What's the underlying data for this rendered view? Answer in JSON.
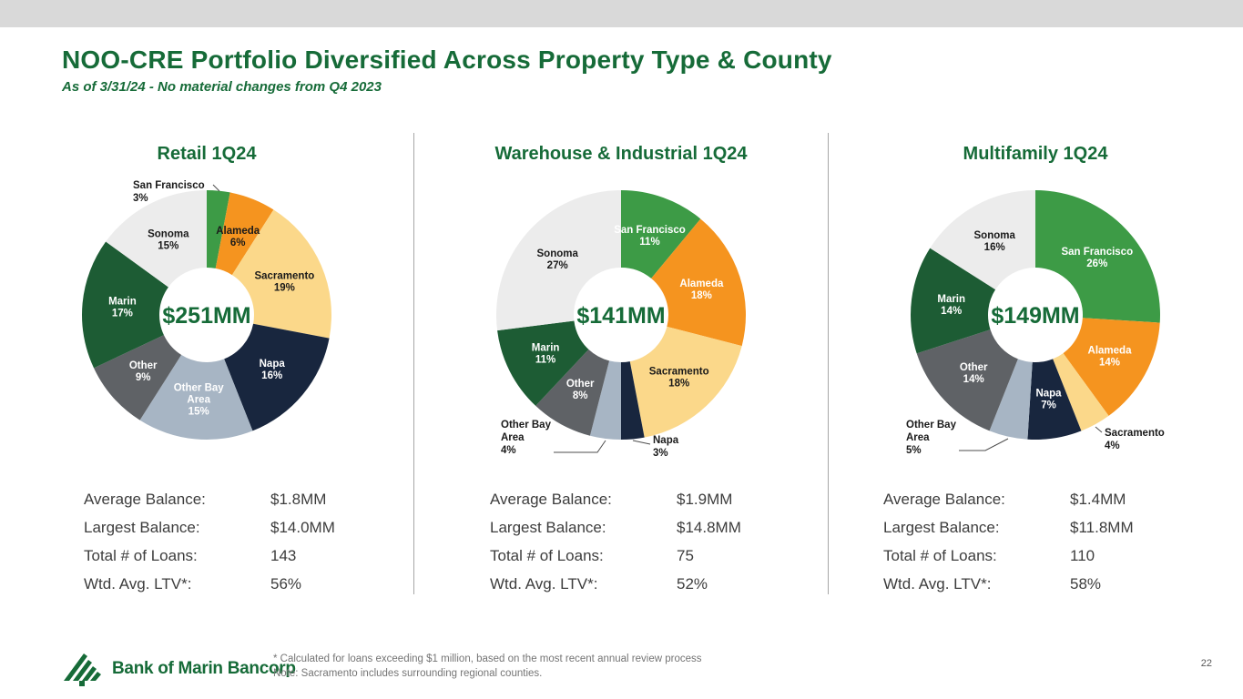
{
  "slide": {
    "title": "NOO-CRE Portfolio Diversified Across Property Type & County",
    "subtitle": "As of 3/31/24 - No material changes from Q4 2023",
    "page_number": "22",
    "footnotes": {
      "line1": "* Calculated for loans exceeding $1 million, based on the most recent annual review process",
      "line2": "Note: Sacramento includes surrounding regional counties."
    },
    "logo_text": "Bank of Marin Bancorp"
  },
  "colors": {
    "accent_green": "#166b38",
    "top_bar_gray": "#d9d9d9",
    "san_francisco": "#3d9b46",
    "alameda": "#f5941f",
    "sacramento": "#fbd88a",
    "napa": "#18263e",
    "other_bay_area": "#a7b5c4",
    "other": "#5f6266",
    "marin": "#1d5c34",
    "sonoma": "#ececec"
  },
  "chart_data": [
    {
      "type": "pie",
      "subtype": "donut",
      "title": "Retail 1Q24",
      "center_label": "$251MM",
      "segments": [
        {
          "name": "San Francisco",
          "value": 3,
          "color": "#3d9b46",
          "label_lines": [
            "San Francisco",
            "3%"
          ],
          "label_color": "#1a1a1a",
          "placement": "outside"
        },
        {
          "name": "Alameda",
          "value": 6,
          "color": "#f5941f",
          "label_lines": [
            "Alameda",
            "6%"
          ],
          "label_color": "#1a1a1a",
          "placement": "inside"
        },
        {
          "name": "Sacramento",
          "value": 19,
          "color": "#fbd88a",
          "label_lines": [
            "Sacramento",
            "19%"
          ],
          "label_color": "#1a1a1a",
          "placement": "inside"
        },
        {
          "name": "Napa",
          "value": 16,
          "color": "#18263e",
          "label_lines": [
            "Napa",
            "16%"
          ],
          "label_color": "#ffffff",
          "placement": "inside"
        },
        {
          "name": "Other Bay Area",
          "value": 15,
          "color": "#a7b5c4",
          "label_lines": [
            "Other Bay",
            "Area",
            "15%"
          ],
          "label_color": "#ffffff",
          "placement": "inside"
        },
        {
          "name": "Other",
          "value": 9,
          "color": "#5f6266",
          "label_lines": [
            "Other",
            "9%"
          ],
          "label_color": "#ffffff",
          "placement": "inside"
        },
        {
          "name": "Marin",
          "value": 17,
          "color": "#1d5c34",
          "label_lines": [
            "Marin",
            "17%"
          ],
          "label_color": "#ffffff",
          "placement": "inside"
        },
        {
          "name": "Sonoma",
          "value": 15,
          "color": "#ececec",
          "label_lines": [
            "Sonoma",
            "15%"
          ],
          "label_color": "#1a1a1a",
          "placement": "inside"
        }
      ],
      "stats": [
        {
          "label": "Average Balance:",
          "value": "$1.8MM"
        },
        {
          "label": "Largest Balance:",
          "value": "$14.0MM"
        },
        {
          "label": "Total # of Loans:",
          "value": "143"
        },
        {
          "label": "Wtd. Avg. LTV*:",
          "value": "56%"
        }
      ]
    },
    {
      "type": "pie",
      "subtype": "donut",
      "title": "Warehouse & Industrial 1Q24",
      "center_label": "$141MM",
      "segments": [
        {
          "name": "San Francisco",
          "value": 11,
          "color": "#3d9b46",
          "label_lines": [
            "San Francisco",
            "11%"
          ],
          "label_color": "#ffffff",
          "placement": "inside"
        },
        {
          "name": "Alameda",
          "value": 18,
          "color": "#f5941f",
          "label_lines": [
            "Alameda",
            "18%"
          ],
          "label_color": "#ffffff",
          "placement": "inside"
        },
        {
          "name": "Sacramento",
          "value": 18,
          "color": "#fbd88a",
          "label_lines": [
            "Sacramento",
            "18%"
          ],
          "label_color": "#1a1a1a",
          "placement": "inside"
        },
        {
          "name": "Napa",
          "value": 3,
          "color": "#18263e",
          "label_lines": [
            "Napa",
            "3%"
          ],
          "label_color": "#1a1a1a",
          "placement": "outside"
        },
        {
          "name": "Other Bay Area",
          "value": 4,
          "color": "#a7b5c4",
          "label_lines": [
            "Other Bay",
            "Area",
            "4%"
          ],
          "label_color": "#1a1a1a",
          "placement": "outside"
        },
        {
          "name": "Other",
          "value": 8,
          "color": "#5f6266",
          "label_lines": [
            "Other",
            "8%"
          ],
          "label_color": "#ffffff",
          "placement": "inside"
        },
        {
          "name": "Marin",
          "value": 11,
          "color": "#1d5c34",
          "label_lines": [
            "Marin",
            "11%"
          ],
          "label_color": "#ffffff",
          "placement": "inside"
        },
        {
          "name": "Sonoma",
          "value": 27,
          "color": "#ececec",
          "label_lines": [
            "Sonoma",
            "27%"
          ],
          "label_color": "#1a1a1a",
          "placement": "inside"
        }
      ],
      "stats": [
        {
          "label": "Average Balance:",
          "value": "$1.9MM"
        },
        {
          "label": "Largest Balance:",
          "value": "$14.8MM"
        },
        {
          "label": "Total # of Loans:",
          "value": "75"
        },
        {
          "label": "Wtd. Avg. LTV*:",
          "value": "52%"
        }
      ]
    },
    {
      "type": "pie",
      "subtype": "donut",
      "title": "Multifamily 1Q24",
      "center_label": "$149MM",
      "segments": [
        {
          "name": "San Francisco",
          "value": 26,
          "color": "#3d9b46",
          "label_lines": [
            "San Francisco",
            "26%"
          ],
          "label_color": "#ffffff",
          "placement": "inside"
        },
        {
          "name": "Alameda",
          "value": 14,
          "color": "#f5941f",
          "label_lines": [
            "Alameda",
            "14%"
          ],
          "label_color": "#ffffff",
          "placement": "inside"
        },
        {
          "name": "Sacramento",
          "value": 4,
          "color": "#fbd88a",
          "label_lines": [
            "Sacramento",
            "4%"
          ],
          "label_color": "#1a1a1a",
          "placement": "outside"
        },
        {
          "name": "Napa",
          "value": 7,
          "color": "#18263e",
          "label_lines": [
            "Napa",
            "7%"
          ],
          "label_color": "#ffffff",
          "placement": "inside"
        },
        {
          "name": "Other Bay Area",
          "value": 5,
          "color": "#a7b5c4",
          "label_lines": [
            "Other Bay",
            "Area",
            "5%"
          ],
          "label_color": "#1a1a1a",
          "placement": "outside"
        },
        {
          "name": "Other",
          "value": 14,
          "color": "#5f6266",
          "label_lines": [
            "Other",
            "14%"
          ],
          "label_color": "#ffffff",
          "placement": "inside"
        },
        {
          "name": "Marin",
          "value": 14,
          "color": "#1d5c34",
          "label_lines": [
            "Marin",
            "14%"
          ],
          "label_color": "#ffffff",
          "placement": "inside"
        },
        {
          "name": "Sonoma",
          "value": 16,
          "color": "#ececec",
          "label_lines": [
            "Sonoma",
            "16%"
          ],
          "label_color": "#1a1a1a",
          "placement": "inside"
        }
      ],
      "stats": [
        {
          "label": "Average Balance:",
          "value": "$1.4MM"
        },
        {
          "label": "Largest Balance:",
          "value": "$11.8MM"
        },
        {
          "label": "Total # of Loans:",
          "value": "110"
        },
        {
          "label": "Wtd. Avg. LTV*:",
          "value": "58%"
        }
      ]
    }
  ]
}
